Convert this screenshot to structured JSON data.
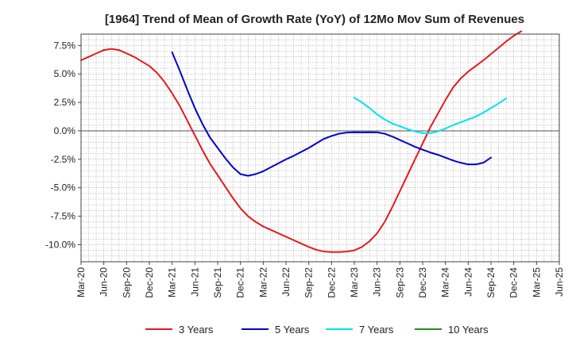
{
  "chart_data": {
    "type": "line",
    "title": "[1964]  Trend of Mean of Growth Rate (YoY) of 12Mo Mov Sum of Revenues",
    "xlabel": "",
    "ylabel": "",
    "ylim": [
      -11.5,
      8.5
    ],
    "y_ticks": [
      {
        "value": 7.5,
        "label": "7.5%"
      },
      {
        "value": 5.0,
        "label": "5.0%"
      },
      {
        "value": 2.5,
        "label": "2.5%"
      },
      {
        "value": 0.0,
        "label": "0.0%"
      },
      {
        "value": -2.5,
        "label": "-2.5%"
      },
      {
        "value": -5.0,
        "label": "-5.0%"
      },
      {
        "value": -7.5,
        "label": "-7.5%"
      },
      {
        "value": -10.0,
        "label": "-10.0%"
      }
    ],
    "x_ticks": [
      "Mar-20",
      "Jun-20",
      "Sep-20",
      "Dec-20",
      "Mar-21",
      "Jun-21",
      "Sep-21",
      "Dec-21",
      "Mar-22",
      "Jun-22",
      "Sep-22",
      "Dec-22",
      "Mar-23",
      "Jun-23",
      "Sep-23",
      "Dec-23",
      "Mar-24",
      "Jun-24",
      "Sep-24",
      "Dec-24",
      "Mar-25",
      "Jun-25"
    ],
    "legend_position": "bottom",
    "series": [
      {
        "name": "3 Years",
        "color": "#e41a1c",
        "points": [
          [
            "Mar-20",
            6.2
          ],
          [
            "Apr-20",
            6.5
          ],
          [
            "May-20",
            6.8
          ],
          [
            "Jun-20",
            7.1
          ],
          [
            "Jul-20",
            7.2
          ],
          [
            "Aug-20",
            7.1
          ],
          [
            "Sep-20",
            6.8
          ],
          [
            "Oct-20",
            6.5
          ],
          [
            "Nov-20",
            6.1
          ],
          [
            "Dec-20",
            5.7
          ],
          [
            "Jan-21",
            5.1
          ],
          [
            "Feb-21",
            4.3
          ],
          [
            "Mar-21",
            3.3
          ],
          [
            "Apr-21",
            2.2
          ],
          [
            "May-21",
            0.9
          ],
          [
            "Jun-21",
            -0.4
          ],
          [
            "Jul-21",
            -1.7
          ],
          [
            "Aug-21",
            -2.9
          ],
          [
            "Sep-21",
            -3.9
          ],
          [
            "Oct-21",
            -4.9
          ],
          [
            "Nov-21",
            -5.9
          ],
          [
            "Dec-21",
            -6.8
          ],
          [
            "Jan-22",
            -7.5
          ],
          [
            "Feb-22",
            -8.0
          ],
          [
            "Mar-22",
            -8.4
          ],
          [
            "Apr-22",
            -8.7
          ],
          [
            "May-22",
            -9.0
          ],
          [
            "Jun-22",
            -9.3
          ],
          [
            "Jul-22",
            -9.6
          ],
          [
            "Aug-22",
            -9.9
          ],
          [
            "Sep-22",
            -10.2
          ],
          [
            "Oct-22",
            -10.45
          ],
          [
            "Nov-22",
            -10.6
          ],
          [
            "Dec-22",
            -10.65
          ],
          [
            "Jan-23",
            -10.65
          ],
          [
            "Feb-23",
            -10.6
          ],
          [
            "Mar-23",
            -10.5
          ],
          [
            "Apr-23",
            -10.2
          ],
          [
            "May-23",
            -9.7
          ],
          [
            "Jun-23",
            -9.0
          ],
          [
            "Jul-23",
            -8.0
          ],
          [
            "Aug-23",
            -6.7
          ],
          [
            "Sep-23",
            -5.3
          ],
          [
            "Oct-23",
            -3.9
          ],
          [
            "Nov-23",
            -2.5
          ],
          [
            "Dec-23",
            -1.1
          ],
          [
            "Jan-24",
            0.3
          ],
          [
            "Feb-24",
            1.5
          ],
          [
            "Mar-24",
            2.7
          ],
          [
            "Apr-24",
            3.8
          ],
          [
            "May-24",
            4.6
          ],
          [
            "Jun-24",
            5.2
          ],
          [
            "Jul-24",
            5.7
          ],
          [
            "Aug-24",
            6.2
          ],
          [
            "Sep-24",
            6.75
          ],
          [
            "Oct-24",
            7.3
          ],
          [
            "Nov-24",
            7.85
          ],
          [
            "Dec-24",
            8.35
          ],
          [
            "Jan-25",
            8.75
          ]
        ]
      },
      {
        "name": "5 Years",
        "color": "#0000cc",
        "points": [
          [
            "Mar-21",
            6.9
          ],
          [
            "Apr-21",
            5.3
          ],
          [
            "May-21",
            3.6
          ],
          [
            "Jun-21",
            2.0
          ],
          [
            "Jul-21",
            0.6
          ],
          [
            "Aug-21",
            -0.6
          ],
          [
            "Sep-21",
            -1.5
          ],
          [
            "Oct-21",
            -2.4
          ],
          [
            "Nov-21",
            -3.2
          ],
          [
            "Dec-21",
            -3.8
          ],
          [
            "Jan-22",
            -3.95
          ],
          [
            "Feb-22",
            -3.8
          ],
          [
            "Mar-22",
            -3.55
          ],
          [
            "Apr-22",
            -3.2
          ],
          [
            "May-22",
            -2.85
          ],
          [
            "Jun-22",
            -2.5
          ],
          [
            "Jul-22",
            -2.2
          ],
          [
            "Aug-22",
            -1.85
          ],
          [
            "Sep-22",
            -1.5
          ],
          [
            "Oct-22",
            -1.1
          ],
          [
            "Nov-22",
            -0.7
          ],
          [
            "Dec-22",
            -0.45
          ],
          [
            "Jan-23",
            -0.25
          ],
          [
            "Feb-23",
            -0.15
          ],
          [
            "Mar-23",
            -0.12
          ],
          [
            "Apr-23",
            -0.13
          ],
          [
            "May-23",
            -0.12
          ],
          [
            "Jun-23",
            -0.13
          ],
          [
            "Jul-23",
            -0.25
          ],
          [
            "Aug-23",
            -0.5
          ],
          [
            "Sep-23",
            -0.8
          ],
          [
            "Oct-23",
            -1.1
          ],
          [
            "Nov-23",
            -1.4
          ],
          [
            "Dec-23",
            -1.65
          ],
          [
            "Jan-24",
            -1.9
          ],
          [
            "Feb-24",
            -2.1
          ],
          [
            "Mar-24",
            -2.35
          ],
          [
            "Apr-24",
            -2.6
          ],
          [
            "May-24",
            -2.8
          ],
          [
            "Jun-24",
            -2.95
          ],
          [
            "Jul-24",
            -2.95
          ],
          [
            "Aug-24",
            -2.8
          ],
          [
            "Sep-24",
            -2.35
          ]
        ]
      },
      {
        "name": "7 Years",
        "color": "#00e5e5",
        "points": [
          [
            "Mar-23",
            2.9
          ],
          [
            "Apr-23",
            2.5
          ],
          [
            "May-23",
            2.0
          ],
          [
            "Jun-23",
            1.45
          ],
          [
            "Jul-23",
            1.0
          ],
          [
            "Aug-23",
            0.65
          ],
          [
            "Sep-23",
            0.4
          ],
          [
            "Oct-23",
            0.15
          ],
          [
            "Nov-23",
            -0.05
          ],
          [
            "Dec-23",
            -0.2
          ],
          [
            "Jan-24",
            -0.2
          ],
          [
            "Feb-24",
            -0.05
          ],
          [
            "Mar-24",
            0.2
          ],
          [
            "Apr-24",
            0.5
          ],
          [
            "May-24",
            0.75
          ],
          [
            "Jun-24",
            1.0
          ],
          [
            "Jul-24",
            1.25
          ],
          [
            "Aug-24",
            1.6
          ],
          [
            "Sep-24",
            2.0
          ],
          [
            "Oct-24",
            2.4
          ],
          [
            "Nov-24",
            2.85
          ]
        ]
      },
      {
        "name": "10 Years",
        "color": "#228b22",
        "points": []
      }
    ]
  }
}
